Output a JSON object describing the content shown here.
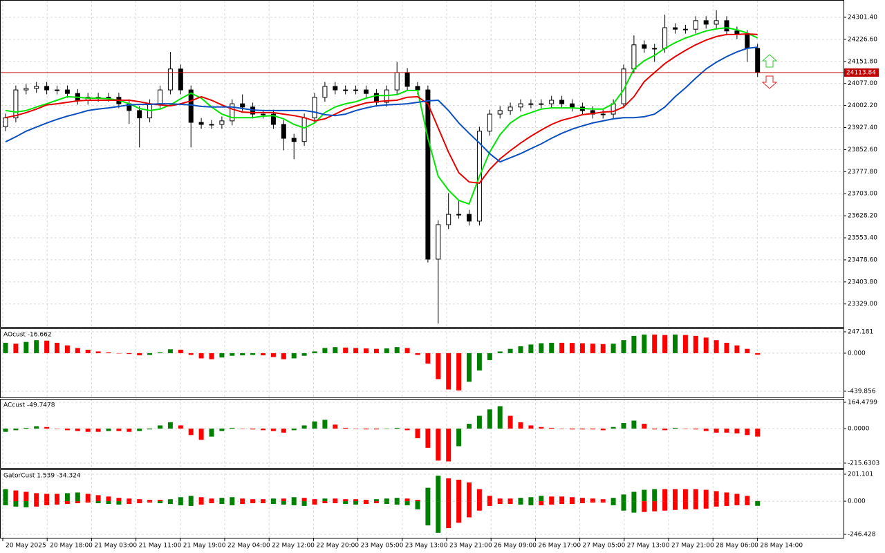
{
  "chart_data": [
    {
      "type": "candlestick",
      "open": [
        23930,
        23960,
        24055,
        24060,
        24067,
        24055,
        24055,
        24043,
        24020,
        24030,
        24030,
        24030,
        24008,
        23985,
        23960,
        24008,
        24055,
        24126,
        24055,
        23945,
        23938,
        23938,
        23950,
        24008,
        23997,
        23973,
        23973,
        23938,
        23891,
        23880,
        23960,
        24030,
        24067,
        24055,
        24055,
        24055,
        24043,
        24013,
        24055,
        24114,
        24067,
        24055,
        23481,
        23598,
        23633,
        23633,
        23610,
        23915,
        23973,
        23985,
        23997,
        24008,
        24008,
        24008,
        24020,
        24008,
        23997,
        23985,
        23973,
        23973,
        24008,
        24126,
        24208,
        24196,
        24196,
        24266,
        24261,
        24261,
        24290,
        24278,
        24290,
        24255,
        24243,
        24196
      ],
      "high": [
        23975,
        24070,
        24075,
        24082,
        24082,
        24070,
        24070,
        24058,
        24045,
        24045,
        24045,
        24045,
        24023,
        24000,
        24023,
        24070,
        24184,
        24141,
        24070,
        23960,
        23953,
        23965,
        24023,
        24040,
        24012,
        23988,
        23988,
        23953,
        23906,
        23975,
        24045,
        24082,
        24082,
        24070,
        24070,
        24070,
        24058,
        24070,
        24150,
        24129,
        24082,
        24070,
        23613,
        23705,
        23680,
        23648,
        23930,
        23988,
        24000,
        24012,
        24023,
        24023,
        24023,
        24035,
        24035,
        24023,
        24012,
        24000,
        23988,
        24023,
        24141,
        24240,
        24223,
        24211,
        24310,
        24281,
        24276,
        24305,
        24305,
        24325,
        24305,
        24270,
        24258,
        24211
      ],
      "low": [
        23915,
        23945,
        24040,
        24045,
        24040,
        24040,
        24028,
        24005,
        24005,
        24015,
        24015,
        23993,
        23940,
        23860,
        23945,
        23993,
        24040,
        24040,
        23860,
        23923,
        23923,
        23923,
        23935,
        23982,
        23958,
        23958,
        23923,
        23850,
        23820,
        23865,
        23945,
        24015,
        24040,
        24040,
        24040,
        24028,
        23998,
        23998,
        24040,
        24052,
        24040,
        23470,
        23263,
        23583,
        23618,
        23595,
        23595,
        23900,
        23958,
        23970,
        23982,
        23993,
        23993,
        23993,
        23993,
        23982,
        23970,
        23958,
        23958,
        23958,
        23993,
        24111,
        24181,
        24150,
        24181,
        24246,
        24246,
        24246,
        24263,
        24263,
        24240,
        24228,
        24150,
        24099
      ],
      "close": [
        23960,
        24055,
        24060,
        24067,
        24055,
        24055,
        24043,
        24020,
        24030,
        24030,
        24030,
        24008,
        23985,
        23960,
        24008,
        24055,
        24126,
        24055,
        23945,
        23938,
        23938,
        23950,
        24008,
        23997,
        23973,
        23973,
        23938,
        23891,
        23880,
        23960,
        24030,
        24067,
        24055,
        24055,
        24055,
        24043,
        24013,
        24055,
        24114,
        24067,
        24055,
        23481,
        23598,
        23633,
        23633,
        23610,
        23915,
        23973,
        23985,
        23997,
        24008,
        24008,
        24008,
        24020,
        24008,
        23997,
        23985,
        23973,
        23973,
        24008,
        24126,
        24208,
        24196,
        24196,
        24266,
        24261,
        24261,
        24290,
        24278,
        24290,
        24255,
        24243,
        24196,
        24114
      ],
      "series": [
        {
          "color": "#00e600",
          "values": [
            23985,
            23980,
            23985,
            23997,
            24008,
            24020,
            24032,
            24030,
            24027,
            24027,
            24025,
            24020,
            24008,
            23992,
            23985,
            23990,
            24004,
            24025,
            24044,
            24027,
            23997,
            23973,
            23961,
            23961,
            23961,
            23966,
            23968,
            23957,
            23938,
            23926,
            23943,
            23978,
            23997,
            24008,
            24015,
            24027,
            24036,
            24036,
            24039,
            24053,
            24053,
            23891,
            23762,
            23715,
            23680,
            23668,
            23762,
            23844,
            23903,
            23943,
            23966,
            23978,
            23990,
            23994,
            23994,
            23994,
            23992,
            23990,
            23990,
            24008,
            24055,
            24126,
            24154,
            24172,
            24196,
            24215,
            24231,
            24243,
            24255,
            24262,
            24266,
            24259,
            24248,
            24231
          ]
        },
        {
          "color": "#e60000",
          "values": [
            23961,
            23968,
            23978,
            23990,
            24004,
            24008,
            24013,
            24018,
            24020,
            24020,
            24020,
            24020,
            24020,
            24015,
            24008,
            24004,
            24001,
            24008,
            24018,
            24032,
            24020,
            24004,
            23990,
            23980,
            23978,
            23978,
            23978,
            23973,
            23968,
            23961,
            23950,
            23957,
            23973,
            23990,
            24001,
            24011,
            24015,
            24018,
            24020,
            24030,
            24032,
            24008,
            23926,
            23844,
            23774,
            23743,
            23739,
            23785,
            23821,
            23849,
            23875,
            23898,
            23919,
            23938,
            23952,
            23961,
            23971,
            23975,
            23980,
            23982,
            23997,
            24032,
            24083,
            24114,
            24144,
            24168,
            24189,
            24208,
            24224,
            24236,
            24243,
            24243,
            24245,
            24243
          ]
        },
        {
          "color": "#0a4fc0",
          "values": [
            23879,
            23896,
            23915,
            23929,
            23943,
            23955,
            23966,
            23975,
            23985,
            23990,
            23994,
            23999,
            24004,
            24006,
            24006,
            24008,
            24008,
            24006,
            24004,
            23999,
            23997,
            23997,
            23997,
            23992,
            23987,
            23985,
            23985,
            23985,
            23985,
            23985,
            23980,
            23971,
            23968,
            23973,
            23985,
            23994,
            24001,
            24004,
            24006,
            24008,
            24013,
            24018,
            24020,
            23985,
            23943,
            23908,
            23875,
            23839,
            23811,
            23825,
            23839,
            23856,
            23872,
            23891,
            23908,
            23922,
            23933,
            23943,
            23950,
            23957,
            23961,
            23961,
            23964,
            23973,
            23997,
            24032,
            24062,
            24095,
            24126,
            24149,
            24168,
            24184,
            24196,
            24200
          ]
        }
      ],
      "price_line": {
        "value": 24113.84,
        "label": "24113.84"
      },
      "ylim": [
        23251,
        24360
      ],
      "yticks": [
        {
          "value": 24301.4,
          "label": "24301.40"
        },
        {
          "value": 24226.6,
          "label": "24226.60"
        },
        {
          "value": 24151.8,
          "label": "24151.80"
        },
        {
          "value": 24077,
          "label": "24077.00"
        },
        {
          "value": 24002.2,
          "label": "24002.20"
        },
        {
          "value": 23927.4,
          "label": "23927.40"
        },
        {
          "value": 23852.6,
          "label": "23852.60"
        },
        {
          "value": 23777.8,
          "label": "23777.80"
        },
        {
          "value": 23703,
          "label": "23703.00"
        },
        {
          "value": 23628.2,
          "label": "23628.20"
        },
        {
          "value": 23553.4,
          "label": "23553.40"
        },
        {
          "value": 23478.6,
          "label": "23478.60"
        },
        {
          "value": 23403.8,
          "label": "23403.80"
        },
        {
          "value": 23329,
          "label": "23329.00"
        }
      ],
      "grid": true
    },
    {
      "type": "bar",
      "title": "AOcust -16.662",
      "up_color": "#008000",
      "down_color": "#ff0000",
      "values": [
        120,
        110,
        130,
        150,
        145,
        120,
        90,
        60,
        40,
        20,
        10,
        0,
        -10,
        -25,
        -20,
        10,
        45,
        40,
        -20,
        -60,
        -70,
        -50,
        -30,
        -25,
        -20,
        -25,
        -45,
        -70,
        -60,
        -30,
        20,
        60,
        70,
        65,
        60,
        55,
        50,
        55,
        70,
        60,
        -20,
        -120,
        -300,
        -420,
        -430,
        -330,
        -200,
        -80,
        20,
        50,
        80,
        100,
        115,
        120,
        120,
        118,
        115,
        110,
        105,
        110,
        150,
        200,
        215,
        215,
        210,
        215,
        210,
        200,
        180,
        150,
        120,
        90,
        50,
        -16.662
      ],
      "ylim": [
        -512,
        287
      ],
      "yticks": [
        {
          "value": 247.181,
          "label": "247.181"
        },
        {
          "value": 0,
          "label": "0.000"
        },
        {
          "value": -439.856,
          "label": "-439.856"
        }
      ]
    },
    {
      "type": "bar",
      "title": "ACcust -49.7478",
      "up_color": "#008000",
      "down_color": "#ff0000",
      "values": [
        -20,
        -10,
        5,
        15,
        10,
        0,
        -10,
        -15,
        -20,
        -20,
        -15,
        -15,
        -20,
        -15,
        -5,
        20,
        40,
        20,
        -40,
        -70,
        -50,
        -15,
        5,
        0,
        -5,
        -10,
        -15,
        -25,
        -10,
        20,
        45,
        55,
        25,
        5,
        0,
        -5,
        -5,
        0,
        5,
        -10,
        -60,
        -120,
        -200,
        -205,
        -110,
        30,
        80,
        120,
        140,
        80,
        40,
        20,
        10,
        5,
        -2,
        -5,
        -5,
        -5,
        -10,
        10,
        35,
        50,
        30,
        -5,
        -10,
        5,
        0,
        -5,
        -15,
        -25,
        -25,
        -30,
        -40,
        -49.7478
      ],
      "ylim": [
        -246,
        186
      ],
      "yticks": [
        {
          "value": 164.4799,
          "label": "164.4799"
        },
        {
          "value": 0,
          "label": "0.0000"
        },
        {
          "value": -215.6303,
          "label": "-215.6303"
        }
      ]
    },
    {
      "type": "gator",
      "title": "GatorCust 1.539 -34.324",
      "up_color": "#008000",
      "down_color": "#ff0000",
      "series": [
        {
          "values": [
            90,
            80,
            70,
            60,
            55,
            55,
            60,
            65,
            55,
            45,
            35,
            25,
            20,
            15,
            10,
            10,
            15,
            30,
            40,
            30,
            20,
            25,
            30,
            20,
            15,
            15,
            20,
            20,
            30,
            25,
            15,
            20,
            20,
            15,
            15,
            10,
            15,
            20,
            25,
            20,
            10,
            100,
            190,
            170,
            160,
            140,
            90,
            40,
            20,
            20,
            25,
            30,
            40,
            35,
            35,
            30,
            25,
            20,
            15,
            25,
            50,
            70,
            85,
            90,
            90,
            90,
            90,
            90,
            85,
            75,
            65,
            55,
            40,
            1.539
          ]
        },
        {
          "values": [
            -30,
            -40,
            -45,
            -40,
            -30,
            -25,
            -20,
            -15,
            -10,
            -15,
            -20,
            -25,
            -20,
            -15,
            -10,
            -15,
            -20,
            -30,
            -35,
            -25,
            -15,
            -20,
            -30,
            -20,
            -15,
            -15,
            -20,
            -25,
            -30,
            -35,
            -25,
            -15,
            -15,
            -20,
            -25,
            -20,
            -15,
            -20,
            -25,
            -30,
            -60,
            -180,
            -235,
            -200,
            -160,
            -120,
            -70,
            -35,
            -20,
            -20,
            -25,
            -30,
            -30,
            -25,
            -20,
            -20,
            -15,
            -10,
            -10,
            -30,
            -70,
            -85,
            -80,
            -75,
            -70,
            -65,
            -60,
            -60,
            -55,
            -40,
            -35,
            -30,
            -30,
            -34.324
          ]
        }
      ],
      "ylim": [
        -272,
        237
      ],
      "yticks": [
        {
          "value": 201.101,
          "label": "201.101"
        },
        {
          "value": 0,
          "label": "0.000"
        },
        {
          "value": -246.428,
          "label": "-246.428"
        }
      ]
    }
  ],
  "time_axis": [
    "20 May 2025",
    "20 May 18:00",
    "21 May 03:00",
    "21 May 11:00",
    "21 May 19:00",
    "22 May 04:00",
    "22 May 12:00",
    "22 May 20:00",
    "23 May 05:00",
    "23 May 13:00",
    "23 May 21:00",
    "26 May 09:00",
    "26 May 17:00",
    "27 May 05:00",
    "27 May 13:00",
    "27 May 21:00",
    "28 May 06:00",
    "28 May 14:00"
  ]
}
